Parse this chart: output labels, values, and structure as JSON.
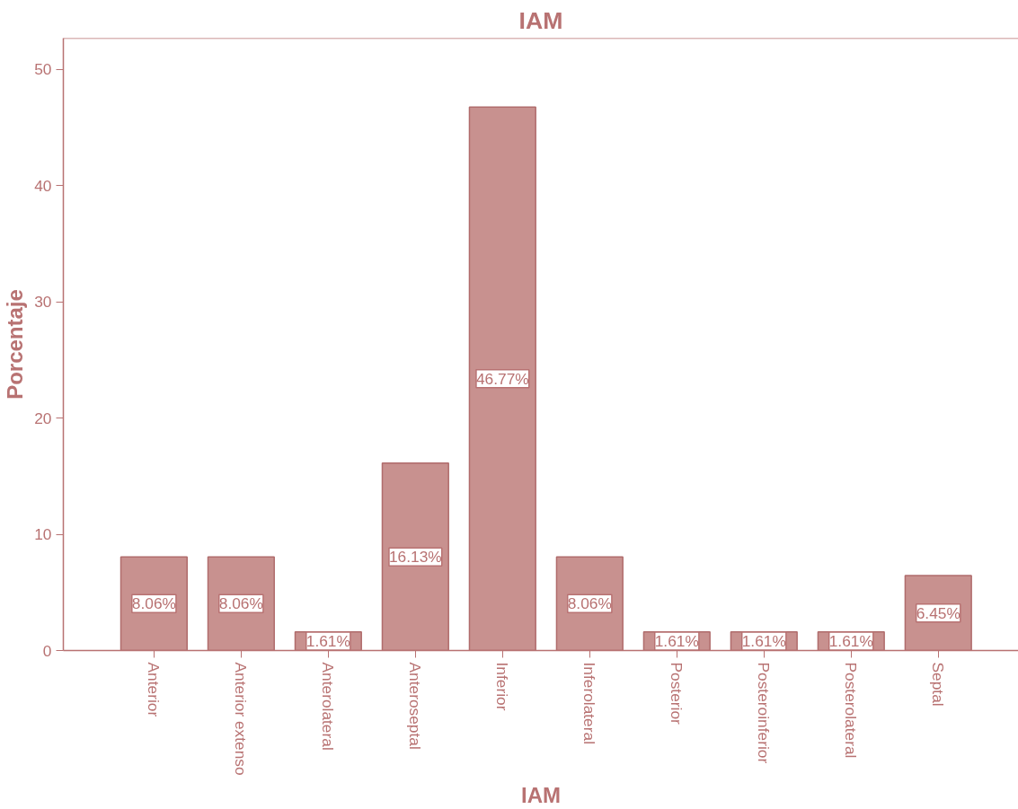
{
  "chart_data": {
    "type": "bar",
    "title": "IAM",
    "xlabel": "IAM",
    "ylabel": "Porcentaje",
    "categories": [
      "Anterior",
      "Anterior extenso",
      "Anterolateral",
      "Anteroseptal",
      "Inferior",
      "Inferolateral",
      "Posterior",
      "Posteroinferior",
      "Posterolateral",
      "Septal"
    ],
    "values": [
      8.06,
      8.06,
      1.61,
      16.13,
      46.77,
      8.06,
      1.61,
      1.61,
      1.61,
      6.45
    ],
    "value_labels": [
      "8.06%",
      "8.06%",
      "1.61%",
      "16.13%",
      "46.77%",
      "8.06%",
      "1.61%",
      "1.61%",
      "1.61%",
      "6.45%"
    ],
    "color": "#c8918f",
    "ylim": [
      0,
      52.7
    ],
    "yticks": [
      0,
      10,
      20,
      30,
      40,
      50
    ],
    "grid": false
  }
}
